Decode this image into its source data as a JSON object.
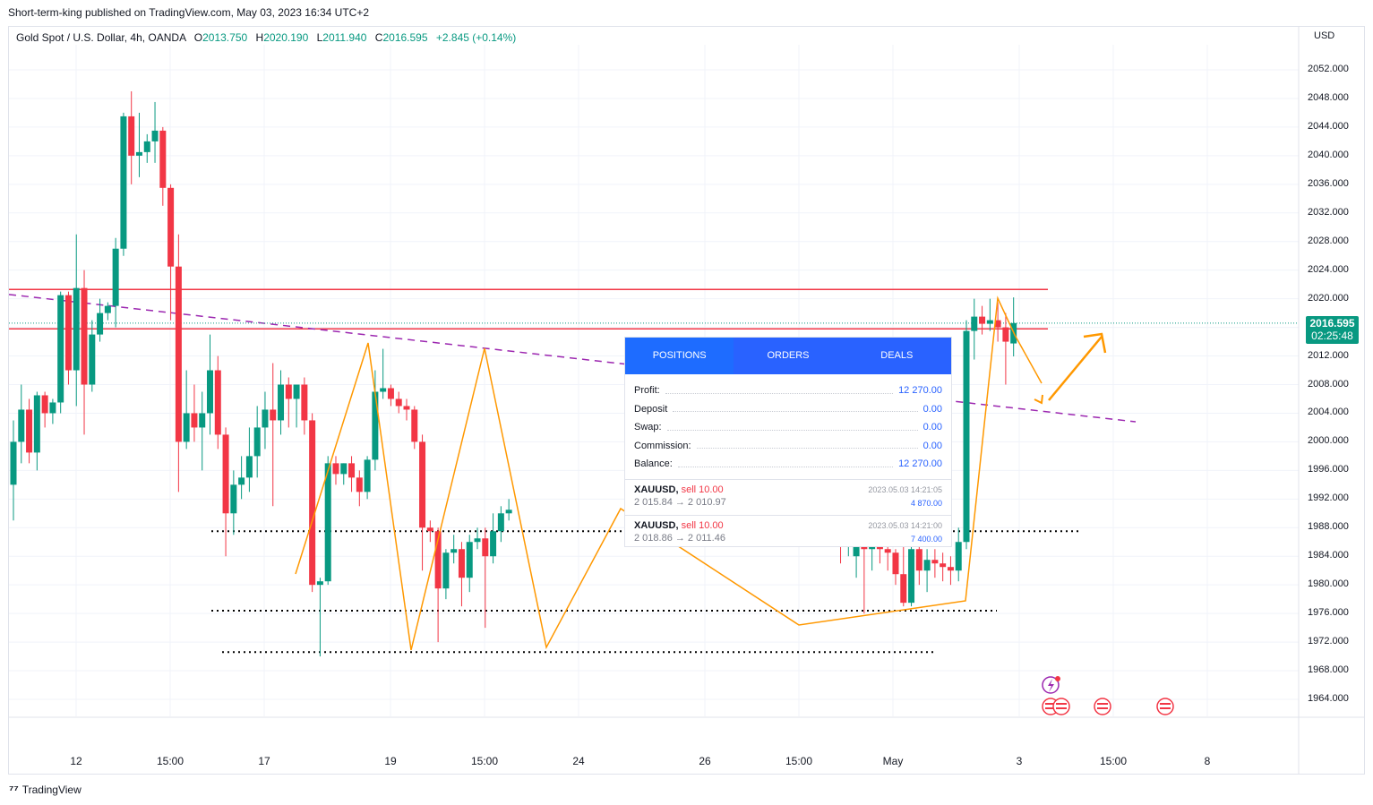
{
  "publisher_line": "Short-term-king published on TradingView.com, May 03, 2023 16:34 UTC+2",
  "legend": {
    "symbol": "Gold Spot / U.S. Dollar, 4h, OANDA",
    "open_label": "O",
    "open": "2013.750",
    "high_label": "H",
    "high": "2020.190",
    "low_label": "L",
    "low": "2011.940",
    "close_label": "C",
    "close": "2016.595",
    "change": "+2.845 (+0.14%)"
  },
  "currency": "USD",
  "last_price": {
    "price": "2016.595",
    "countdown": "02:25:48"
  },
  "footer": {
    "brand": "TradingView"
  },
  "panel": {
    "tabs": [
      "POSITIONS",
      "ORDERS",
      "DEALS"
    ],
    "rows": [
      {
        "label": "Profit:",
        "value": "12 270.00"
      },
      {
        "label": "Deposit",
        "value": "0.00"
      },
      {
        "label": "Swap:",
        "value": "0.00"
      },
      {
        "label": "Commission:",
        "value": "0.00"
      },
      {
        "label": "Balance:",
        "value": "12 270.00"
      }
    ],
    "deals": [
      {
        "symbol": "XAUUSD,",
        "side": "sell 10.00",
        "prices": "2 015.84 → 2 010.97",
        "time": "2023.05.03 14:21:05",
        "amount": "4 870.00"
      },
      {
        "symbol": "XAUUSD,",
        "side": "sell 10.00",
        "prices": "2 018.86 → 2 011.46",
        "time": "2023.05.03 14:21:00",
        "amount": "7 400.00"
      }
    ]
  },
  "chart_data": {
    "type": "candlestick",
    "colors": {
      "up": "#089981",
      "down": "#f23645",
      "resistance": "#f23645",
      "trendline": "#9c27b0",
      "zigzag": "#ff9800",
      "support": "#000000"
    },
    "y_range": [
      1960,
      2056
    ],
    "y_ticks": [
      2052,
      2048,
      2044,
      2040,
      2036,
      2032,
      2028,
      2024,
      2020,
      2016,
      2012,
      2008,
      2004,
      2000,
      1996,
      1992,
      1988,
      1984,
      1980,
      1976,
      1972,
      1968,
      1964
    ],
    "y_tick_labels": [
      "2052.000",
      "2048.000",
      "2044.000",
      "2040.000",
      "2036.000",
      "2032.000",
      "2028.000",
      "2024.000",
      "2020.000",
      "2016.000",
      "2012.000",
      "2008.000",
      "2004.000",
      "2000.000",
      "1996.000",
      "1992.000",
      "1988.000",
      "1984.000",
      "1980.000",
      "1976.000",
      "1972.000",
      "1968.000",
      "1964.000"
    ],
    "x_tick_labels": [
      "12",
      "15:00",
      "17",
      "19",
      "15:00",
      "24",
      "26",
      "15:00",
      "May",
      "3",
      "15:00",
      "8"
    ],
    "candles": [
      {
        "o": 1994.0,
        "h": 2003.0,
        "l": 1989.0,
        "c": 2000.0
      },
      {
        "o": 2000.0,
        "h": 2008.0,
        "l": 1997.0,
        "c": 2004.5
      },
      {
        "o": 2004.5,
        "h": 2006.0,
        "l": 1997.0,
        "c": 1998.5
      },
      {
        "o": 1998.5,
        "h": 2007.0,
        "l": 1996.0,
        "c": 2006.5
      },
      {
        "o": 2006.5,
        "h": 2007.0,
        "l": 2002.0,
        "c": 2004.0
      },
      {
        "o": 2004.0,
        "h": 2006.0,
        "l": 2002.5,
        "c": 2005.5
      },
      {
        "o": 2005.5,
        "h": 2021.0,
        "l": 2004.0,
        "c": 2020.5
      },
      {
        "o": 2020.5,
        "h": 2021.0,
        "l": 2008.0,
        "c": 2010.0
      },
      {
        "o": 2010.0,
        "h": 2029.0,
        "l": 2005.0,
        "c": 2021.5
      },
      {
        "o": 2021.5,
        "h": 2024.0,
        "l": 2001.0,
        "c": 2008.0
      },
      {
        "o": 2008.0,
        "h": 2017.0,
        "l": 2007.0,
        "c": 2015.0
      },
      {
        "o": 2015.0,
        "h": 2020.0,
        "l": 2014.0,
        "c": 2018.0
      },
      {
        "o": 2018.0,
        "h": 2019.5,
        "l": 2017.0,
        "c": 2019.0
      },
      {
        "o": 2019.0,
        "h": 2028.5,
        "l": 2016.0,
        "c": 2027.0
      },
      {
        "o": 2027.0,
        "h": 2046.0,
        "l": 2026.0,
        "c": 2045.5
      },
      {
        "o": 2045.5,
        "h": 2049.0,
        "l": 2036.0,
        "c": 2040.0
      },
      {
        "o": 2040.0,
        "h": 2046.0,
        "l": 2037.0,
        "c": 2040.5
      },
      {
        "o": 2040.5,
        "h": 2043.0,
        "l": 2039.0,
        "c": 2042.0
      },
      {
        "o": 2042.0,
        "h": 2047.5,
        "l": 2039.0,
        "c": 2043.5
      },
      {
        "o": 2043.5,
        "h": 2044.0,
        "l": 2033.0,
        "c": 2035.5
      },
      {
        "o": 2035.5,
        "h": 2036.0,
        "l": 2017.0,
        "c": 2024.5
      },
      {
        "o": 2024.5,
        "h": 2029.0,
        "l": 1993.0,
        "c": 2000.0
      },
      {
        "o": 2000.0,
        "h": 2010.0,
        "l": 1999.0,
        "c": 2004.0
      },
      {
        "o": 2004.0,
        "h": 2008.0,
        "l": 2000.0,
        "c": 2002.0
      },
      {
        "o": 2002.0,
        "h": 2007.0,
        "l": 1996.0,
        "c": 2004.0
      },
      {
        "o": 2004.0,
        "h": 2015.0,
        "l": 2001.0,
        "c": 2010.0
      },
      {
        "o": 2010.0,
        "h": 2012.0,
        "l": 1999.0,
        "c": 2001.0
      },
      {
        "o": 2001.0,
        "h": 2002.0,
        "l": 1984.0,
        "c": 1990.0
      },
      {
        "o": 1990.0,
        "h": 1996.0,
        "l": 1987.0,
        "c": 1994.0
      },
      {
        "o": 1994.0,
        "h": 1998.0,
        "l": 1992.0,
        "c": 1995.0
      },
      {
        "o": 1995.0,
        "h": 2002.0,
        "l": 1993.0,
        "c": 1998.0
      },
      {
        "o": 1998.0,
        "h": 2005.0,
        "l": 1995.0,
        "c": 2002.0
      },
      {
        "o": 2002.0,
        "h": 2007.0,
        "l": 1999.0,
        "c": 2004.5
      },
      {
        "o": 2004.5,
        "h": 2011.0,
        "l": 1991.0,
        "c": 2003.0
      },
      {
        "o": 2003.0,
        "h": 2010.0,
        "l": 2001.0,
        "c": 2008.0
      },
      {
        "o": 2008.0,
        "h": 2009.0,
        "l": 2002.0,
        "c": 2006.0
      },
      {
        "o": 2006.0,
        "h": 2008.0,
        "l": 2002.0,
        "c": 2008.0
      },
      {
        "o": 2008.0,
        "h": 2009.0,
        "l": 2001.0,
        "c": 2003.0
      },
      {
        "o": 2003.0,
        "h": 2004.0,
        "l": 1979.0,
        "c": 1980.0
      },
      {
        "o": 1980.0,
        "h": 1981.0,
        "l": 1970.0,
        "c": 1980.5
      },
      {
        "o": 1980.5,
        "h": 1998.0,
        "l": 1980.0,
        "c": 1997.0
      },
      {
        "o": 1997.0,
        "h": 1998.0,
        "l": 1994.0,
        "c": 1995.5
      },
      {
        "o": 1995.5,
        "h": 1997.0,
        "l": 1994.0,
        "c": 1997.0
      },
      {
        "o": 1997.0,
        "h": 1998.0,
        "l": 1993.0,
        "c": 1995.0
      },
      {
        "o": 1995.0,
        "h": 1996.0,
        "l": 1991.0,
        "c": 1993.0
      },
      {
        "o": 1993.0,
        "h": 1998.0,
        "l": 1992.0,
        "c": 1997.5
      },
      {
        "o": 1997.5,
        "h": 2010.0,
        "l": 1996.0,
        "c": 2007.0
      },
      {
        "o": 2007.0,
        "h": 2013.0,
        "l": 2006.0,
        "c": 2007.5
      },
      {
        "o": 2007.5,
        "h": 2008.0,
        "l": 2005.0,
        "c": 2006.0
      },
      {
        "o": 2006.0,
        "h": 2007.0,
        "l": 2004.0,
        "c": 2005.0
      },
      {
        "o": 2005.0,
        "h": 2006.0,
        "l": 2003.0,
        "c": 2004.5
      },
      {
        "o": 2004.5,
        "h": 2005.0,
        "l": 1999.0,
        "c": 2000.0
      },
      {
        "o": 2000.0,
        "h": 2001.0,
        "l": 1982.0,
        "c": 1988.0
      },
      {
        "o": 1988.0,
        "h": 1989.0,
        "l": 1986.0,
        "c": 1987.5
      },
      {
        "o": 1987.5,
        "h": 1988.0,
        "l": 1972.0,
        "c": 1979.5
      },
      {
        "o": 1979.5,
        "h": 1985.0,
        "l": 1978.0,
        "c": 1984.5
      },
      {
        "o": 1984.5,
        "h": 1987.0,
        "l": 1983.0,
        "c": 1985.0
      },
      {
        "o": 1985.0,
        "h": 1986.0,
        "l": 1977.0,
        "c": 1981.0
      },
      {
        "o": 1981.0,
        "h": 1987.0,
        "l": 1979.0,
        "c": 1986.0
      },
      {
        "o": 1986.0,
        "h": 1988.0,
        "l": 1985.0,
        "c": 1986.5
      },
      {
        "o": 1986.5,
        "h": 1988.0,
        "l": 1974.0,
        "c": 1984.0
      },
      {
        "o": 1984.0,
        "h": 1990.0,
        "l": 1983.0,
        "c": 1987.5
      },
      {
        "o": 1987.5,
        "h": 1991.0,
        "l": 1986.0,
        "c": 1990.0
      },
      {
        "o": 1990.0,
        "h": 1992.0,
        "l": 1989.0,
        "c": 1990.5
      }
    ],
    "tail_candles": [
      {
        "o": 1986.0,
        "h": 1987.0,
        "l": 1983.0,
        "c": 1985.5
      },
      {
        "o": 1985.5,
        "h": 1988.0,
        "l": 1984.0,
        "c": 1986.0
      },
      {
        "o": 1984.0,
        "h": 1986.0,
        "l": 1981.0,
        "c": 1985.5
      },
      {
        "o": 1985.5,
        "h": 1987.0,
        "l": 1976.0,
        "c": 1985.0
      },
      {
        "o": 1985.0,
        "h": 1986.0,
        "l": 1982.0,
        "c": 1986.0
      },
      {
        "o": 1986.0,
        "h": 1990.0,
        "l": 1983.0,
        "c": 1985.0
      },
      {
        "o": 1985.0,
        "h": 1986.0,
        "l": 1982.0,
        "c": 1984.5
      },
      {
        "o": 1984.5,
        "h": 1985.0,
        "l": 1980.0,
        "c": 1981.5
      },
      {
        "o": 1981.5,
        "h": 1986.0,
        "l": 1977.0,
        "c": 1977.5
      },
      {
        "o": 1977.5,
        "h": 1988.0,
        "l": 1977.0,
        "c": 1985.0
      },
      {
        "o": 1985.0,
        "h": 1986.0,
        "l": 1980.0,
        "c": 1982.0
      },
      {
        "o": 1982.0,
        "h": 1985.0,
        "l": 1979.0,
        "c": 1983.5
      },
      {
        "o": 1983.5,
        "h": 1985.0,
        "l": 1981.0,
        "c": 1983.0
      },
      {
        "o": 1983.0,
        "h": 1984.5,
        "l": 1980.5,
        "c": 1982.5
      },
      {
        "o": 1982.5,
        "h": 1984.0,
        "l": 1980.0,
        "c": 1982.0
      },
      {
        "o": 1982.0,
        "h": 1988.0,
        "l": 1980.5,
        "c": 1986.0
      },
      {
        "o": 1986.0,
        "h": 2017.0,
        "l": 1985.0,
        "c": 2015.5
      },
      {
        "o": 2015.5,
        "h": 2020.0,
        "l": 2011.5,
        "c": 2017.5
      },
      {
        "o": 2017.5,
        "h": 2019.0,
        "l": 2015.0,
        "c": 2016.5
      },
      {
        "o": 2016.5,
        "h": 2020.0,
        "l": 2015.5,
        "c": 2017.0
      },
      {
        "o": 2017.0,
        "h": 2019.5,
        "l": 2014.0,
        "c": 2016.0
      },
      {
        "o": 2016.0,
        "h": 2018.0,
        "l": 2008.0,
        "c": 2014.0
      },
      {
        "o": 2013.75,
        "h": 2020.19,
        "l": 2011.94,
        "c": 2016.595
      }
    ],
    "horizontal_lines": [
      {
        "kind": "resistance",
        "y": 2021.3
      },
      {
        "kind": "resistance",
        "y": 2015.8
      },
      {
        "kind": "support",
        "y": 1987.5
      },
      {
        "kind": "support",
        "y": 1976.4
      },
      {
        "kind": "support",
        "y": 1970.6
      }
    ],
    "trendline": {
      "from": 2020.6,
      "to": 2002.8
    }
  }
}
